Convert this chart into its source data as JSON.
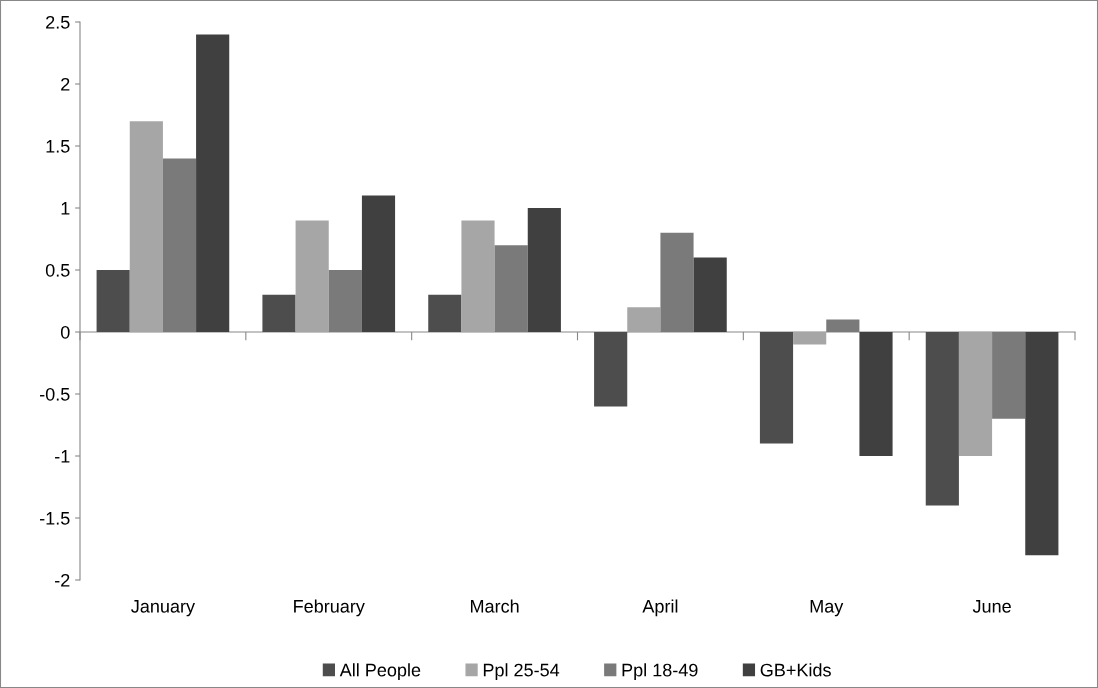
{
  "chart_data": {
    "type": "bar",
    "categories": [
      "January",
      "February",
      "March",
      "April",
      "May",
      "June"
    ],
    "series": [
      {
        "name": "All People",
        "color": "#4d4d4d",
        "values": [
          0.5,
          0.3,
          0.3,
          -0.6,
          -0.9,
          -1.4
        ]
      },
      {
        "name": "Ppl 25-54",
        "color": "#a6a6a6",
        "values": [
          1.7,
          0.9,
          0.9,
          0.2,
          -0.1,
          -1.0
        ]
      },
      {
        "name": "Ppl 18-49",
        "color": "#7a7a7a",
        "values": [
          1.4,
          0.5,
          0.7,
          0.8,
          0.1,
          -0.7
        ]
      },
      {
        "name": "GB+Kids",
        "color": "#404040",
        "values": [
          2.4,
          1.1,
          1.0,
          0.6,
          -1.0,
          -1.8
        ]
      }
    ],
    "ylim": [
      -2,
      2.5
    ],
    "yticks": [
      -2,
      -1.5,
      -1,
      -0.5,
      0,
      0.5,
      1,
      1.5,
      2,
      2.5
    ],
    "legend": "bottom"
  }
}
